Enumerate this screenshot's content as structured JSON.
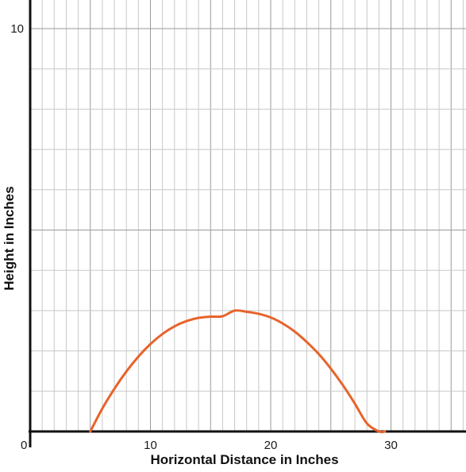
{
  "chart_data": {
    "type": "line",
    "title": "",
    "xlabel": "Horizontal Distance in Inches",
    "ylabel": "Height in Inches",
    "xlim": [
      0,
      36
    ],
    "ylim": [
      0,
      10
    ],
    "x_ticks": [
      0,
      10,
      20,
      30
    ],
    "x_tick_labels": [
      "10",
      "20",
      "30"
    ],
    "y_tick_labels": [
      "10"
    ],
    "origin_label": "0",
    "grid": true,
    "series": [
      {
        "color": "#e8632b",
        "x": [
          5,
          6,
          7,
          8,
          9,
          10,
          11,
          12,
          13,
          14,
          15,
          16,
          17,
          18,
          19,
          20,
          21,
          22,
          23,
          24,
          25,
          26,
          27,
          28,
          29,
          29.5
        ],
        "y": [
          0,
          0.57,
          1.06,
          1.49,
          1.86,
          2.17,
          2.42,
          2.61,
          2.74,
          2.82,
          2.85,
          2.86,
          3.0,
          2.97,
          2.92,
          2.83,
          2.68,
          2.48,
          2.22,
          1.92,
          1.56,
          1.15,
          0.69,
          0.2,
          -0.03,
          0
        ]
      }
    ]
  }
}
